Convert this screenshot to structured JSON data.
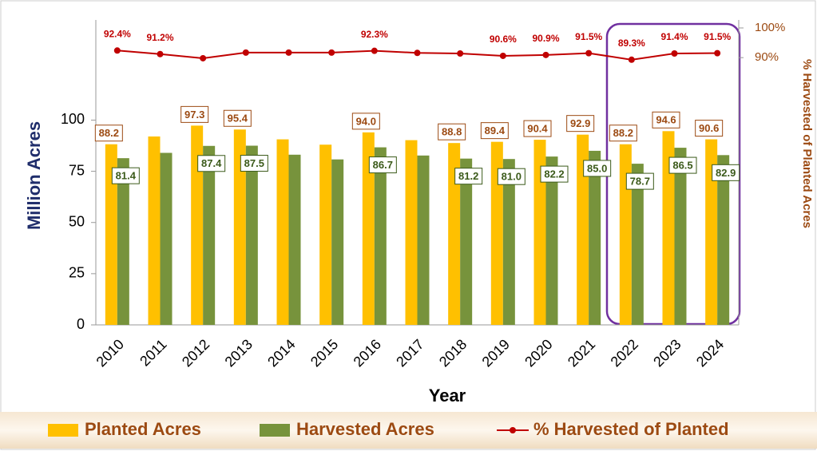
{
  "chart_data": {
    "type": "bar",
    "x_label": "Year",
    "y_label": "Million Acres",
    "y2_label": "% Harvested of Planted Acres",
    "categories": [
      "2010",
      "2011",
      "2012",
      "2013",
      "2014",
      "2015",
      "2016",
      "2017",
      "2018",
      "2019",
      "2020",
      "2021",
      "2022",
      "2023",
      "2024"
    ],
    "ylim": [
      0,
      145
    ],
    "yticks": [
      0,
      25,
      50,
      75,
      100
    ],
    "y2lim": [
      0,
      100
    ],
    "y2ticks": [
      {
        "value": 90,
        "label": "90%"
      },
      {
        "value": 100,
        "label": "100%"
      }
    ],
    "legend": "bottom",
    "series": [
      {
        "name": "Planted Acres",
        "type": "bar",
        "color": "#FFC000",
        "values": [
          88.2,
          92.0,
          97.3,
          95.4,
          90.6,
          88.0,
          94.0,
          90.2,
          88.8,
          89.4,
          90.4,
          92.9,
          88.2,
          94.6,
          90.6
        ],
        "value_labels": [
          "88.2",
          null,
          "97.3",
          "95.4",
          null,
          null,
          "94.0",
          null,
          "88.8",
          "89.4",
          "90.4",
          "92.9",
          "88.2",
          "94.6",
          "90.6"
        ]
      },
      {
        "name": "Harvested Acres",
        "type": "bar",
        "color": "#77933C",
        "values": [
          81.4,
          84.0,
          87.4,
          87.5,
          83.1,
          80.8,
          86.7,
          82.7,
          81.2,
          81.0,
          82.2,
          85.0,
          78.7,
          86.5,
          82.9
        ],
        "value_labels": [
          "81.4",
          null,
          "87.4",
          "87.5",
          null,
          null,
          "86.7",
          null,
          "81.2",
          "81.0",
          "82.2",
          "85.0",
          "78.7",
          "86.5",
          "82.9"
        ]
      },
      {
        "name": "% Harvested of Planted",
        "type": "line",
        "axis": "y2",
        "color": "#C00000",
        "values": [
          92.4,
          91.2,
          89.8,
          91.7,
          91.7,
          91.7,
          92.3,
          91.6,
          91.4,
          90.6,
          90.9,
          91.5,
          89.3,
          91.4,
          91.5
        ],
        "value_labels": [
          "92.4%",
          "91.2%",
          null,
          null,
          null,
          null,
          "92.3%",
          null,
          null,
          "90.6%",
          "90.9%",
          "91.5%",
          "89.3%",
          "91.4%",
          "91.5%"
        ]
      }
    ]
  }
}
